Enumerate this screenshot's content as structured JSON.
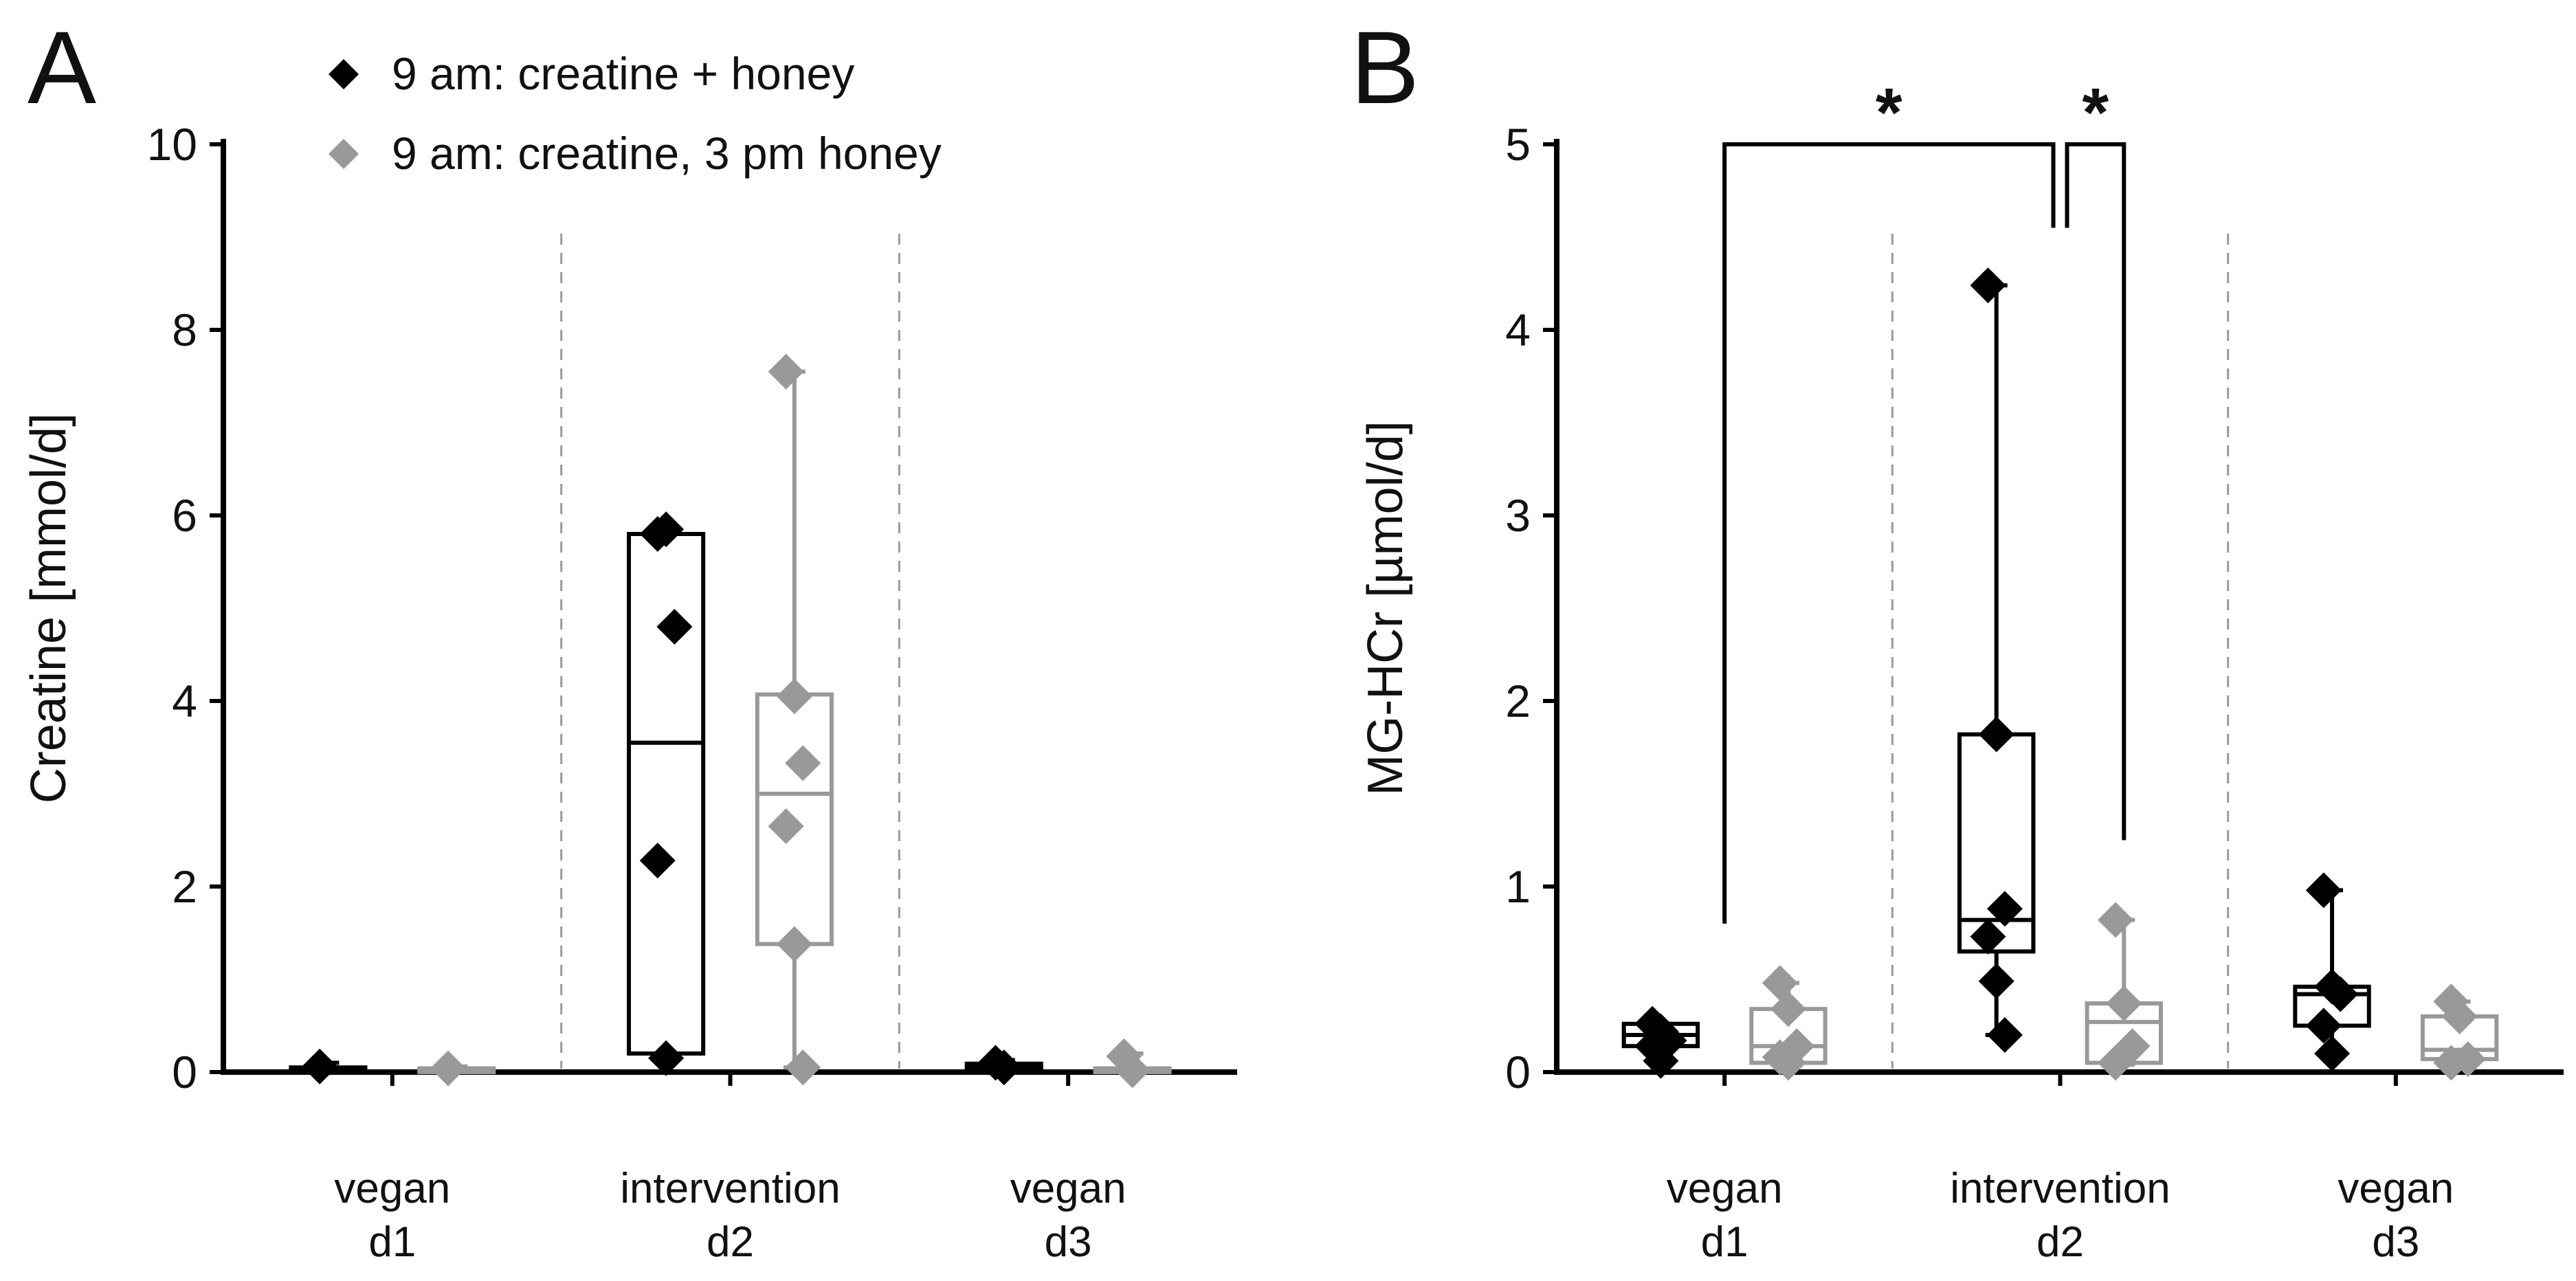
{
  "chart_data": [
    {
      "panel": "A",
      "type": "box",
      "ylabel": "Creatine [mmol/d]",
      "ylim": [
        0,
        10
      ],
      "yticks": [
        0,
        2,
        4,
        6,
        8,
        10
      ],
      "categories": [
        {
          "line1": "vegan",
          "line2": "d1"
        },
        {
          "line1": "intervention",
          "line2": "d2"
        },
        {
          "line1": "vegan",
          "line2": "d3"
        }
      ],
      "series": [
        {
          "name": "9 am: creatine + honey",
          "color": "#000000",
          "boxes": [
            {
              "q1": 0.0,
              "median": 0.02,
              "q3": 0.05,
              "min": 0.0,
              "max": 0.1,
              "points": [
                0.06
              ]
            },
            {
              "q1": 0.2,
              "median": 3.55,
              "q3": 5.8,
              "min": 0.15,
              "max": 5.85,
              "points": [
                5.8,
                5.85,
                4.8,
                2.28,
                0.15
              ]
            },
            {
              "q1": 0.0,
              "median": 0.05,
              "q3": 0.09,
              "min": 0.0,
              "max": 0.13,
              "points": [
                0.1,
                0.05
              ]
            }
          ]
        },
        {
          "name": "9 am: creatine, 3 pm honey",
          "color": "#999999",
          "boxes": [
            {
              "q1": 0.0,
              "median": 0.02,
              "q3": 0.04,
              "min": 0.0,
              "max": 0.06,
              "points": [
                0.04
              ]
            },
            {
              "q1": 1.38,
              "median": 3.0,
              "q3": 4.07,
              "min": 0.05,
              "max": 7.55,
              "points": [
                7.55,
                4.05,
                3.33,
                2.65,
                1.38,
                0.05
              ]
            },
            {
              "q1": 0.0,
              "median": 0.02,
              "q3": 0.04,
              "min": 0.0,
              "max": 0.2,
              "points": [
                0.17,
                0.02
              ]
            }
          ]
        }
      ],
      "legend": [
        "9 am: creatine + honey",
        "9 am: creatine, 3 pm honey"
      ]
    },
    {
      "panel": "B",
      "type": "box",
      "ylabel": "MG-HCr [µmol/d]",
      "ylim": [
        0,
        5
      ],
      "yticks": [
        0,
        1,
        2,
        3,
        4,
        5
      ],
      "categories": [
        {
          "line1": "vegan",
          "line2": "d1"
        },
        {
          "line1": "intervention",
          "line2": "d2"
        },
        {
          "line1": "vegan",
          "line2": "d3"
        }
      ],
      "series": [
        {
          "name": "9 am: creatine + honey",
          "color": "#000000",
          "boxes": [
            {
              "q1": 0.14,
              "median": 0.2,
              "q3": 0.26,
              "min": 0.06,
              "max": 0.26,
              "points": [
                0.26,
                0.22,
                0.17,
                0.14,
                0.06
              ]
            },
            {
              "q1": 0.65,
              "median": 0.82,
              "q3": 1.82,
              "min": 0.2,
              "max": 4.24,
              "points": [
                4.24,
                1.82,
                0.88,
                0.73,
                0.49,
                0.2
              ]
            },
            {
              "q1": 0.25,
              "median": 0.42,
              "q3": 0.46,
              "min": 0.1,
              "max": 0.98,
              "points": [
                0.98,
                0.46,
                0.42,
                0.25,
                0.1
              ]
            }
          ]
        },
        {
          "name": "9 am: creatine, 3 pm honey",
          "color": "#999999",
          "boxes": [
            {
              "q1": 0.05,
              "median": 0.14,
              "q3": 0.34,
              "min": 0.04,
              "max": 0.48,
              "points": [
                0.48,
                0.34,
                0.14,
                0.08,
                0.05
              ]
            },
            {
              "q1": 0.05,
              "median": 0.27,
              "q3": 0.37,
              "min": 0.04,
              "max": 0.82,
              "points": [
                0.82,
                0.37,
                0.14,
                0.05
              ]
            },
            {
              "q1": 0.07,
              "median": 0.12,
              "q3": 0.3,
              "min": 0.05,
              "max": 0.38,
              "points": [
                0.38,
                0.3,
                0.07,
                0.05
              ]
            }
          ]
        }
      ],
      "significance": [
        {
          "from_category": 0,
          "to_category": 1,
          "label": "*",
          "bracket_level": 5.0
        },
        {
          "from_category": 1,
          "to_category": 1,
          "label": "*",
          "bracket_level": 5.0
        }
      ]
    }
  ]
}
